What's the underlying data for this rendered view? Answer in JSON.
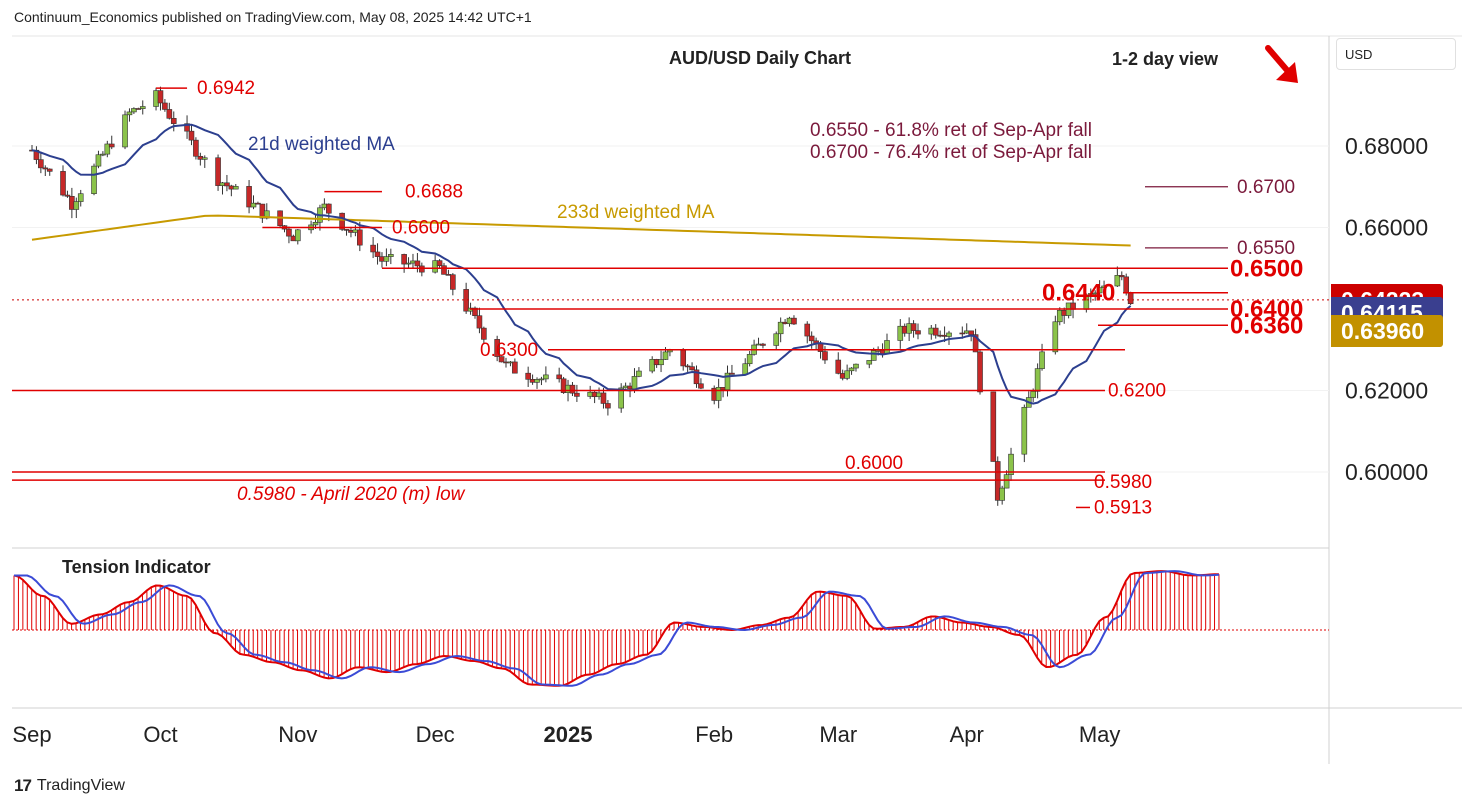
{
  "header": {
    "publisher_line": "Continuum_Economics published on TradingView.com, May 08, 2025 14:42 UTC+1"
  },
  "footer": {
    "logo_text": "TradingView",
    "logo_mark": "17"
  },
  "currency": "USD",
  "colors": {
    "red": "#e00000",
    "candle_up": "#8bc34a",
    "candle_down": "#c62828",
    "ma21": "#2c3f8f",
    "ma233": "#c79a00",
    "fib": "#7b1a3c",
    "tag_last": "#cc0000",
    "tag_ma21": "#3a3f8f",
    "tag_ma233": "#c29100"
  },
  "chart_data": [
    {
      "type": "candlestick",
      "title": "AUD/USD Daily Chart",
      "subtitle": "1-2 day view",
      "view_arrow": "down-right-arrow",
      "x_ticks": [
        "Sep",
        "Oct",
        "Nov",
        "Dec",
        "2025",
        "Feb",
        "Mar",
        "Apr",
        "May"
      ],
      "y_ticks": [
        0.6,
        0.62,
        0.66,
        0.68
      ],
      "y_tick_labels": [
        "0.60000",
        "0.62000",
        "0.66000",
        "0.68000"
      ],
      "ylim": [
        0.585,
        0.698
      ],
      "last_price": {
        "value": 0.64223,
        "label": "0.64223"
      },
      "ma21_value": {
        "value": 0.64115,
        "label": "0.64115"
      },
      "ma233_value": {
        "value": 0.6396,
        "label": "0.63960"
      },
      "series": [
        {
          "name": "21d weighted MA",
          "color": "#2c3f8f"
        },
        {
          "name": "233d weighted MA",
          "color": "#c79a00"
        }
      ],
      "fib_notes": [
        "0.6550 - 61.8% ret of Sep-Apr fall",
        "0.6700 - 76.4% ret of Sep-Apr fall"
      ],
      "levels": [
        {
          "value": 0.6942,
          "label": "0.6942"
        },
        {
          "value": 0.6688,
          "label": "0.6688"
        },
        {
          "value": 0.66,
          "label": "0.6600"
        },
        {
          "value": 0.67,
          "label": "0.6700"
        },
        {
          "value": 0.655,
          "label": "0.6550"
        },
        {
          "value": 0.65,
          "label": "0.6500"
        },
        {
          "value": 0.644,
          "label": "0.6440"
        },
        {
          "value": 0.64,
          "label": "0.6400"
        },
        {
          "value": 0.636,
          "label": "0.6360"
        },
        {
          "value": 0.63,
          "label": "0.6300"
        },
        {
          "value": 0.62,
          "label": "0.6200"
        },
        {
          "value": 0.6,
          "label": "0.6000"
        },
        {
          "value": 0.598,
          "label": "0.5980"
        },
        {
          "value": 0.598,
          "label": "0.5980 - April 2020 (m) low"
        },
        {
          "value": 0.5913,
          "label": "0.5913"
        }
      ],
      "ohlc_anchor_closes": [
        {
          "date": "2024-09-02",
          "close": 0.679
        },
        {
          "date": "2024-09-11",
          "close": 0.666
        },
        {
          "date": "2024-09-24",
          "close": 0.688
        },
        {
          "date": "2024-09-30",
          "close": 0.692
        },
        {
          "date": "2024-10-14",
          "close": 0.672
        },
        {
          "date": "2024-10-31",
          "close": 0.658
        },
        {
          "date": "2024-11-07",
          "close": 0.665
        },
        {
          "date": "2024-11-20",
          "close": 0.652
        },
        {
          "date": "2024-12-03",
          "close": 0.65
        },
        {
          "date": "2024-12-18",
          "close": 0.626
        },
        {
          "date": "2025-01-10",
          "close": 0.617
        },
        {
          "date": "2025-01-24",
          "close": 0.63
        },
        {
          "date": "2025-02-03",
          "close": 0.619
        },
        {
          "date": "2025-02-20",
          "close": 0.639
        },
        {
          "date": "2025-03-04",
          "close": 0.623
        },
        {
          "date": "2025-03-18",
          "close": 0.635
        },
        {
          "date": "2025-04-02",
          "close": 0.635
        },
        {
          "date": "2025-04-08",
          "close": 0.594
        },
        {
          "date": "2025-04-21",
          "close": 0.638
        },
        {
          "date": "2025-05-02",
          "close": 0.645
        },
        {
          "date": "2025-05-06",
          "close": 0.648
        },
        {
          "date": "2025-05-08",
          "close": 0.6422
        }
      ]
    },
    {
      "type": "histogram",
      "title": "Tension Indicator",
      "ylim": [
        -1,
        1
      ],
      "values": [
        0.88,
        0.55,
        0.1,
        0.25,
        0.45,
        0.72,
        0.55,
        -0.05,
        -0.4,
        -0.52,
        -0.65,
        -0.78,
        -0.6,
        -0.68,
        -0.55,
        -0.42,
        -0.5,
        -0.62,
        -0.88,
        -0.9,
        -0.72,
        -0.55,
        -0.4,
        0.12,
        0.05,
        0.0,
        0.08,
        0.2,
        0.62,
        0.55,
        0.02,
        0.05,
        0.22,
        0.12,
        0.05,
        -0.08,
        -0.6,
        -0.4,
        0.2,
        0.92,
        0.95,
        0.88,
        0.9
      ]
    }
  ]
}
